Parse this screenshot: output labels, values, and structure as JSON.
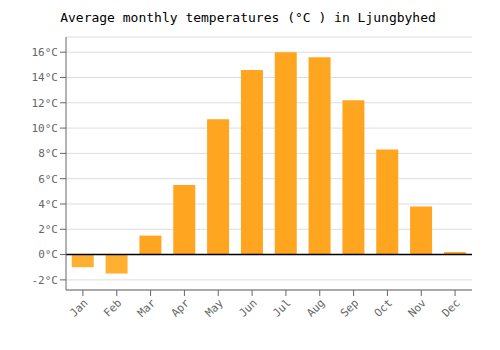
{
  "chart_data": {
    "type": "bar",
    "title": "Average monthly temperatures (°C ) in Ljungbyhed",
    "categories": [
      "Jan",
      "Feb",
      "Mar",
      "Apr",
      "May",
      "Jun",
      "Jul",
      "Aug",
      "Sep",
      "Oct",
      "Nov",
      "Dec"
    ],
    "values": [
      -1.0,
      -1.5,
      1.5,
      5.5,
      10.7,
      14.6,
      16.0,
      15.6,
      12.2,
      8.3,
      3.8,
      0.2
    ],
    "colors": [
      "#FFB030",
      "#FFB030",
      "#FFA520",
      "#FFA520",
      "#FFA520",
      "#FFA520",
      "#FFA520",
      "#FFA520",
      "#FFA520",
      "#FFA520",
      "#FFA520",
      "#FFA520"
    ],
    "ylim": [
      -2.8,
      17.2
    ],
    "yticks": [
      {
        "value": 16,
        "label": "16°C"
      },
      {
        "value": 14,
        "label": "14°C"
      },
      {
        "value": 12,
        "label": "12°C"
      },
      {
        "value": 10,
        "label": "10°C"
      },
      {
        "value": 8,
        "label": "8°C"
      },
      {
        "value": 6,
        "label": "6°C"
      },
      {
        "value": 4,
        "label": "4°C"
      },
      {
        "value": 2,
        "label": "2°C"
      },
      {
        "value": 0,
        "label": "0°C"
      },
      {
        "value": -2,
        "label": "-2°C"
      }
    ],
    "grid": true
  }
}
